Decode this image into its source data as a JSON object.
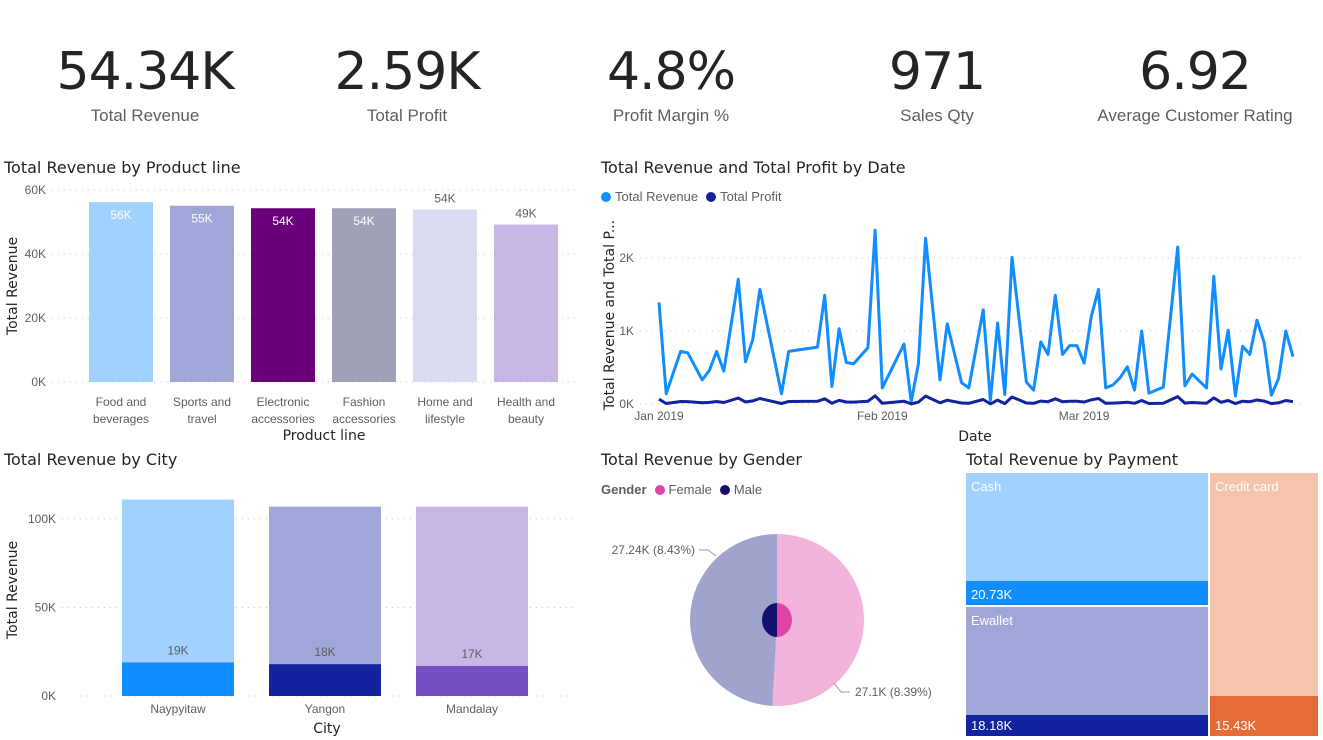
{
  "kpis": [
    {
      "value": "54.34K",
      "label": "Total Revenue"
    },
    {
      "value": "2.59K",
      "label": "Total Profit"
    },
    {
      "value": "4.8%",
      "label": "Profit Margin %"
    },
    {
      "value": "971",
      "label": "Sales Qty"
    },
    {
      "value": "6.92",
      "label": "Average Customer Rating"
    }
  ],
  "chart_data": [
    {
      "type": "bar",
      "title": "Total Revenue by Product line",
      "xlabel": "Product line",
      "ylabel": "Total Revenue",
      "ylim": [
        0,
        60000
      ],
      "yticks": [
        "0K",
        "20K",
        "40K",
        "60K"
      ],
      "grid": true,
      "categories": [
        "Food and beverages",
        "Sports and travel",
        "Electronic accessories",
        "Fashion accessories",
        "Home and lifestyle",
        "Health and beauty"
      ],
      "values": [
        56200,
        55100,
        54300,
        54300,
        53900,
        49200
      ],
      "data_labels": [
        "56K",
        "55K",
        "54K",
        "54K",
        "54K",
        "49K"
      ],
      "colors": [
        "#a0d1ff",
        "#a0a6d8",
        "#6b007b",
        "#9fa1b9",
        "#d9dbf0",
        "#c8b6e6"
      ]
    },
    {
      "type": "line",
      "title": "Total Revenue and Total Profit by Date",
      "xlabel": "Date",
      "ylabel": "Total Revenue and Total P...",
      "ylim": [
        0,
        2500
      ],
      "yticks": [
        "0K",
        "1K",
        "2K"
      ],
      "xticks": [
        "Jan 2019",
        "Feb 2019",
        "Mar 2019"
      ],
      "grid": true,
      "legend_position": "top-left",
      "series": [
        {
          "name": "Total Revenue",
          "color": "#118dff"
        },
        {
          "name": "Total Profit",
          "color": "#12239e"
        }
      ],
      "points": [
        [
          "2019-01-01",
          1390,
          66
        ],
        [
          "2019-01-02",
          140,
          7
        ],
        [
          "2019-01-04",
          720,
          34
        ],
        [
          "2019-01-05",
          700,
          33
        ],
        [
          "2019-01-07",
          330,
          16
        ],
        [
          "2019-01-08",
          460,
          22
        ],
        [
          "2019-01-09",
          720,
          34
        ],
        [
          "2019-01-10",
          450,
          21
        ],
        [
          "2019-01-12",
          1710,
          81
        ],
        [
          "2019-01-13",
          580,
          28
        ],
        [
          "2019-01-14",
          880,
          42
        ],
        [
          "2019-01-15",
          1570,
          75
        ],
        [
          "2019-01-18",
          140,
          7
        ],
        [
          "2019-01-19",
          720,
          34
        ],
        [
          "2019-01-23",
          780,
          37
        ],
        [
          "2019-01-24",
          1490,
          71
        ],
        [
          "2019-01-25",
          240,
          11
        ],
        [
          "2019-01-26",
          1030,
          49
        ],
        [
          "2019-01-27",
          570,
          27
        ],
        [
          "2019-01-28",
          550,
          26
        ],
        [
          "2019-01-30",
          770,
          37
        ],
        [
          "2019-01-31",
          2380,
          113
        ],
        [
          "2019-02-01",
          220,
          10
        ],
        [
          "2019-02-04",
          820,
          39
        ],
        [
          "2019-02-05",
          30,
          1
        ],
        [
          "2019-02-06",
          550,
          26
        ],
        [
          "2019-02-07",
          2270,
          108
        ],
        [
          "2019-02-09",
          330,
          16
        ],
        [
          "2019-02-10",
          1100,
          52
        ],
        [
          "2019-02-12",
          290,
          14
        ],
        [
          "2019-02-13",
          220,
          10
        ],
        [
          "2019-02-15",
          1290,
          61
        ],
        [
          "2019-02-16",
          50,
          2
        ],
        [
          "2019-02-17",
          1110,
          53
        ],
        [
          "2019-02-18",
          130,
          6
        ],
        [
          "2019-02-19",
          2010,
          96
        ],
        [
          "2019-02-21",
          300,
          14
        ],
        [
          "2019-02-22",
          190,
          9
        ],
        [
          "2019-02-23",
          850,
          40
        ],
        [
          "2019-02-24",
          680,
          32
        ],
        [
          "2019-02-25",
          1490,
          71
        ],
        [
          "2019-02-26",
          680,
          32
        ],
        [
          "2019-02-27",
          800,
          38
        ],
        [
          "2019-02-28",
          800,
          38
        ],
        [
          "2019-03-01",
          560,
          27
        ],
        [
          "2019-03-02",
          1200,
          57
        ],
        [
          "2019-03-03",
          1570,
          75
        ],
        [
          "2019-03-04",
          220,
          10
        ],
        [
          "2019-03-05",
          260,
          12
        ],
        [
          "2019-03-06",
          360,
          17
        ],
        [
          "2019-03-07",
          510,
          24
        ],
        [
          "2019-03-08",
          190,
          9
        ],
        [
          "2019-03-09",
          1000,
          48
        ],
        [
          "2019-03-10",
          150,
          7
        ],
        [
          "2019-03-12",
          230,
          11
        ],
        [
          "2019-03-14",
          2150,
          102
        ],
        [
          "2019-03-15",
          250,
          12
        ],
        [
          "2019-03-16",
          410,
          20
        ],
        [
          "2019-03-18",
          220,
          10
        ],
        [
          "2019-03-19",
          1750,
          83
        ],
        [
          "2019-03-20",
          480,
          23
        ],
        [
          "2019-03-21",
          1010,
          48
        ],
        [
          "2019-03-22",
          110,
          5
        ],
        [
          "2019-03-23",
          790,
          38
        ],
        [
          "2019-03-24",
          680,
          32
        ],
        [
          "2019-03-25",
          1150,
          55
        ],
        [
          "2019-03-26",
          840,
          40
        ],
        [
          "2019-03-27",
          120,
          6
        ],
        [
          "2019-03-28",
          350,
          17
        ],
        [
          "2019-03-29",
          1000,
          48
        ],
        [
          "2019-03-30",
          650,
          31
        ]
      ]
    },
    {
      "type": "bar",
      "title": "Total Revenue by City",
      "xlabel": "City",
      "ylabel": "Total Revenue",
      "ylim": [
        0,
        115000
      ],
      "yticks": [
        "0K",
        "50K",
        "100K"
      ],
      "grid": true,
      "categories": [
        "Naypyitaw",
        "Yangon",
        "Mandalay"
      ],
      "series": [
        {
          "values": [
            19000,
            18000,
            17000
          ],
          "data_labels": [
            "19K",
            "18K",
            "17K"
          ],
          "colors": [
            "#118dff",
            "#12239e",
            "#744ec2"
          ]
        },
        {
          "values": [
            111000,
            107000,
            107000
          ],
          "colors": [
            "#a0d1ff",
            "#a0a6d8",
            "#c8b6e6"
          ]
        }
      ]
    },
    {
      "type": "pie",
      "title": "Total Revenue by Gender",
      "legend_title": "Gender",
      "legend_position": "top-left",
      "slices": [
        {
          "name": "Female",
          "value": 27100,
          "label": "27.1K (8.39%)",
          "color": "#e044a7",
          "outer_color": "#f2b4dc"
        },
        {
          "name": "Male",
          "value": 27240,
          "label": "27.24K (8.43%)",
          "color": "#12126e",
          "outer_color": "#a0a3cc"
        }
      ]
    },
    {
      "type": "treemap",
      "title": "Total Revenue by Payment",
      "items": [
        {
          "name": "Cash",
          "value_label": "20.73K",
          "color": "#a0d1ff",
          "band_color": "#118dff"
        },
        {
          "name": "Ewallet",
          "value_label": "18.18K",
          "color": "#a0a6d8",
          "band_color": "#12239e"
        },
        {
          "name": "Credit card",
          "value_label": "15.43K",
          "color": "#f4c4ad",
          "band_color": "#e66c37"
        }
      ]
    }
  ]
}
